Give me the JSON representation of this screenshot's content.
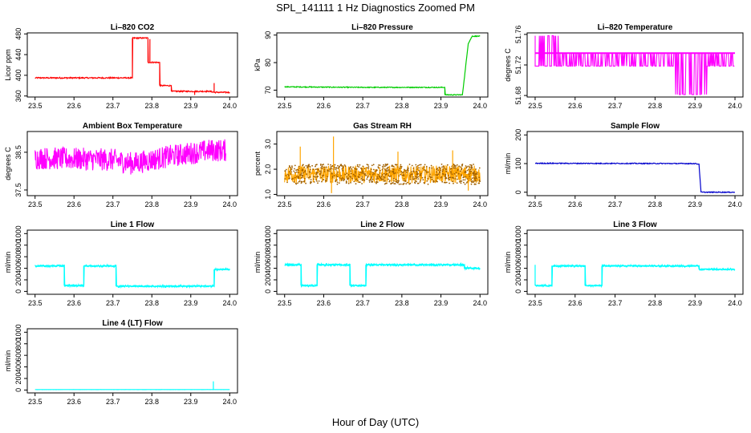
{
  "title": "SPL_141111  1 Hz Diagnostics Zoomed PM",
  "xlabel": "Hour of Day (UTC)",
  "chart_data": [
    {
      "type": "line",
      "id": "co2",
      "title": "Li–820 CO2",
      "ylabel": "Licor ppm",
      "color": "#ff0000",
      "xlim": [
        23.48,
        24.02
      ],
      "ylim": [
        358,
        482
      ],
      "xticks": [
        23.5,
        23.6,
        23.7,
        23.8,
        23.9,
        24.0
      ],
      "xticklabels": [
        "23.5",
        "23.6",
        "23.7",
        "23.8",
        "23.9",
        "24.0"
      ],
      "yticks": [
        360,
        400,
        440,
        480
      ],
      "yticklabels": [
        "360",
        "400",
        "440",
        "480"
      ],
      "segments": [
        [
          23.5,
          395
        ],
        [
          23.75,
          395
        ],
        [
          23.75,
          472
        ],
        [
          23.79,
          472
        ],
        [
          23.79,
          425
        ],
        [
          23.82,
          425
        ],
        [
          23.82,
          380
        ],
        [
          23.85,
          380
        ],
        [
          23.85,
          369
        ],
        [
          23.92,
          369
        ],
        [
          23.95,
          369
        ],
        [
          23.96,
          367
        ],
        [
          24.0,
          367
        ]
      ],
      "noise": 1.2,
      "spikes": [
        [
          23.96,
          385
        ],
        [
          23.91,
          362
        ],
        [
          23.795,
          470
        ]
      ]
    },
    {
      "type": "line",
      "id": "pressure",
      "title": "Li–820 Pressure",
      "ylabel": "kPa",
      "color": "#00cc00",
      "xlim": [
        23.48,
        24.02
      ],
      "ylim": [
        67.5,
        90.8
      ],
      "xticks": [
        23.5,
        23.6,
        23.7,
        23.8,
        23.9,
        24.0
      ],
      "xticklabels": [
        "23.5",
        "23.6",
        "23.7",
        "23.8",
        "23.9",
        "24.0"
      ],
      "yticks": [
        70,
        80,
        90
      ],
      "yticklabels": [
        "70",
        "80",
        "90"
      ],
      "segments": [
        [
          23.5,
          71.2
        ],
        [
          23.7,
          71.0
        ],
        [
          23.91,
          71.0
        ],
        [
          23.91,
          68.3
        ],
        [
          23.955,
          68.3
        ],
        [
          23.97,
          87
        ],
        [
          23.98,
          89.6
        ],
        [
          24.0,
          89.6
        ]
      ],
      "noise": 0.15,
      "spikes": []
    },
    {
      "type": "toggle",
      "id": "licor-temp",
      "title": "Li–820 Temperature",
      "ylabel": "degrees C",
      "color": "#ff00ff",
      "xlim": [
        23.48,
        24.02
      ],
      "ylim": [
        51.678,
        51.762
      ],
      "xticks": [
        23.5,
        23.6,
        23.7,
        23.8,
        23.9,
        24.0
      ],
      "xticklabels": [
        "23.5",
        "23.6",
        "23.7",
        "23.8",
        "23.9",
        "24.0"
      ],
      "yticks": [
        51.68,
        51.72,
        51.76
      ],
      "yticklabels": [
        "51.68",
        "51.72",
        "51.76"
      ],
      "levels": [
        51.7185,
        51.7355
      ],
      "low_level": 51.6813,
      "high_level": 51.7582,
      "base_level": 51.7355
    },
    {
      "type": "band",
      "id": "ambient",
      "title": "Ambient Box Temperature",
      "ylabel": "degrees C",
      "color": "#ff00ff",
      "xlim": [
        23.48,
        24.02
      ],
      "ylim": [
        37.35,
        39.05
      ],
      "xticks": [
        23.5,
        23.6,
        23.7,
        23.8,
        23.9,
        24.0
      ],
      "xticklabels": [
        "23.5",
        "23.6",
        "23.7",
        "23.8",
        "23.9",
        "24.0"
      ],
      "yticks": [
        37.5,
        38.5
      ],
      "yticklabels": [
        "37.5",
        "38.5"
      ],
      "center": [
        [
          23.5,
          38.35
        ],
        [
          23.7,
          38.3
        ],
        [
          23.75,
          38.2
        ],
        [
          23.85,
          38.4
        ],
        [
          23.95,
          38.55
        ],
        [
          24.0,
          38.55
        ]
      ],
      "spread": 0.3,
      "xmax": 23.99
    },
    {
      "type": "band",
      "id": "rh",
      "title": "Gas Stream RH",
      "ylabel": "percent",
      "color": "#ffa500",
      "xlim": [
        23.48,
        24.02
      ],
      "ylim": [
        0.95,
        3.5
      ],
      "xticks": [
        23.5,
        23.6,
        23.7,
        23.8,
        23.9,
        24.0
      ],
      "xticklabels": [
        "23.5",
        "23.6",
        "23.7",
        "23.8",
        "23.9",
        "24.0"
      ],
      "yticks": [
        1.0,
        2.0,
        3.0
      ],
      "yticklabels": [
        "1.0",
        "2.0",
        "3.0"
      ],
      "center": [
        [
          23.5,
          1.8
        ],
        [
          24.0,
          1.8
        ]
      ],
      "spread": 0.35,
      "xmax": 24.0,
      "peaks": [
        [
          23.54,
          2.9
        ],
        [
          23.625,
          3.3
        ],
        [
          23.79,
          2.7
        ],
        [
          23.93,
          2.75
        ],
        [
          23.62,
          1.05
        ],
        [
          23.97,
          1.15
        ]
      ]
    },
    {
      "type": "line",
      "id": "sample-flow",
      "title": "Sample Flow",
      "ylabel": "ml/min",
      "color": "#0000cc",
      "xlim": [
        23.48,
        24.02
      ],
      "ylim": [
        -12,
        212
      ],
      "xticks": [
        23.5,
        23.6,
        23.7,
        23.8,
        23.9,
        24.0
      ],
      "xticklabels": [
        "23.5",
        "23.6",
        "23.7",
        "23.8",
        "23.9",
        "24.0"
      ],
      "yticks": [
        0,
        100,
        200
      ],
      "yticklabels": [
        "0",
        "100",
        "200"
      ],
      "segments": [
        [
          23.5,
          101
        ],
        [
          23.9,
          100
        ],
        [
          23.91,
          98
        ],
        [
          23.915,
          0
        ],
        [
          24.0,
          0
        ]
      ],
      "noise": 1.5,
      "spikes": []
    },
    {
      "type": "line",
      "id": "line1",
      "title": "Line 1 Flow",
      "ylabel": "ml/min",
      "color": "#00ffff",
      "xlim": [
        23.48,
        24.02
      ],
      "ylim": [
        -50,
        1060
      ],
      "xticks": [
        23.5,
        23.6,
        23.7,
        23.8,
        23.9,
        24.0
      ],
      "xticklabels": [
        "23.5",
        "23.6",
        "23.7",
        "23.8",
        "23.9",
        "24.0"
      ],
      "yticks": [
        0,
        200,
        400,
        600,
        800,
        1000
      ],
      "yticklabels": [
        "0",
        "200",
        "400",
        "600",
        "800",
        "1000"
      ],
      "segments": [
        [
          23.5,
          440
        ],
        [
          23.575,
          440
        ],
        [
          23.575,
          100
        ],
        [
          23.625,
          100
        ],
        [
          23.625,
          440
        ],
        [
          23.708,
          440
        ],
        [
          23.708,
          90
        ],
        [
          23.96,
          90
        ],
        [
          23.96,
          380
        ],
        [
          24.0,
          380
        ]
      ],
      "noise": 8,
      "spikes": [],
      "hidelast": true
    },
    {
      "type": "line",
      "id": "line2",
      "title": "Line 2 Flow",
      "ylabel": "ml/min",
      "color": "#00ffff",
      "xlim": [
        23.48,
        24.02
      ],
      "ylim": [
        -50,
        1060
      ],
      "xticks": [
        23.5,
        23.6,
        23.7,
        23.8,
        23.9,
        24.0
      ],
      "xticklabels": [
        "23.5",
        "23.6",
        "23.7",
        "23.8",
        "23.9",
        "24.0"
      ],
      "yticks": [
        0,
        200,
        400,
        600,
        800,
        1000
      ],
      "yticklabels": [
        "0",
        "200",
        "400",
        "600",
        "800",
        "1000"
      ],
      "segments": [
        [
          23.5,
          460
        ],
        [
          23.542,
          460
        ],
        [
          23.542,
          100
        ],
        [
          23.583,
          100
        ],
        [
          23.583,
          460
        ],
        [
          23.667,
          460
        ],
        [
          23.667,
          100
        ],
        [
          23.708,
          100
        ],
        [
          23.708,
          460
        ],
        [
          23.96,
          460
        ],
        [
          23.96,
          400
        ],
        [
          24.0,
          400
        ]
      ],
      "noise": 10,
      "spikes": [],
      "hidelast": true
    },
    {
      "type": "line",
      "id": "line3",
      "title": "Line 3 Flow",
      "ylabel": "ml/min",
      "color": "#00ffff",
      "xlim": [
        23.48,
        24.02
      ],
      "ylim": [
        -50,
        1060
      ],
      "xticks": [
        23.5,
        23.6,
        23.7,
        23.8,
        23.9,
        24.0
      ],
      "xticklabels": [
        "23.5",
        "23.6",
        "23.7",
        "23.8",
        "23.9",
        "24.0"
      ],
      "yticks": [
        0,
        200,
        400,
        600,
        800,
        1000
      ],
      "yticklabels": [
        "0",
        "200",
        "400",
        "600",
        "800",
        "1000"
      ],
      "segments": [
        [
          23.5,
          100
        ],
        [
          23.542,
          100
        ],
        [
          23.542,
          440
        ],
        [
          23.625,
          440
        ],
        [
          23.625,
          100
        ],
        [
          23.667,
          100
        ],
        [
          23.667,
          440
        ],
        [
          23.91,
          440
        ],
        [
          23.91,
          380
        ],
        [
          24.0,
          380
        ]
      ],
      "noise": 7,
      "spikes": [
        [
          23.5,
          460
        ]
      ]
    },
    {
      "type": "line",
      "id": "line4",
      "title": "Line 4 (LT) Flow",
      "ylabel": "ml/min",
      "color": "#00ffff",
      "xlim": [
        23.48,
        24.02
      ],
      "ylim": [
        -50,
        1060
      ],
      "xticks": [
        23.5,
        23.6,
        23.7,
        23.8,
        23.9,
        24.0
      ],
      "xticklabels": [
        "23.5",
        "23.6",
        "23.7",
        "23.8",
        "23.9",
        "24.0"
      ],
      "yticks": [
        0,
        200,
        400,
        600,
        800,
        1000
      ],
      "yticklabels": [
        "0",
        "200",
        "400",
        "600",
        "800",
        "1000"
      ],
      "segments": [
        [
          23.5,
          8
        ],
        [
          24.0,
          8
        ]
      ],
      "noise": 1,
      "spikes": [
        [
          23.958,
          150
        ]
      ]
    }
  ]
}
